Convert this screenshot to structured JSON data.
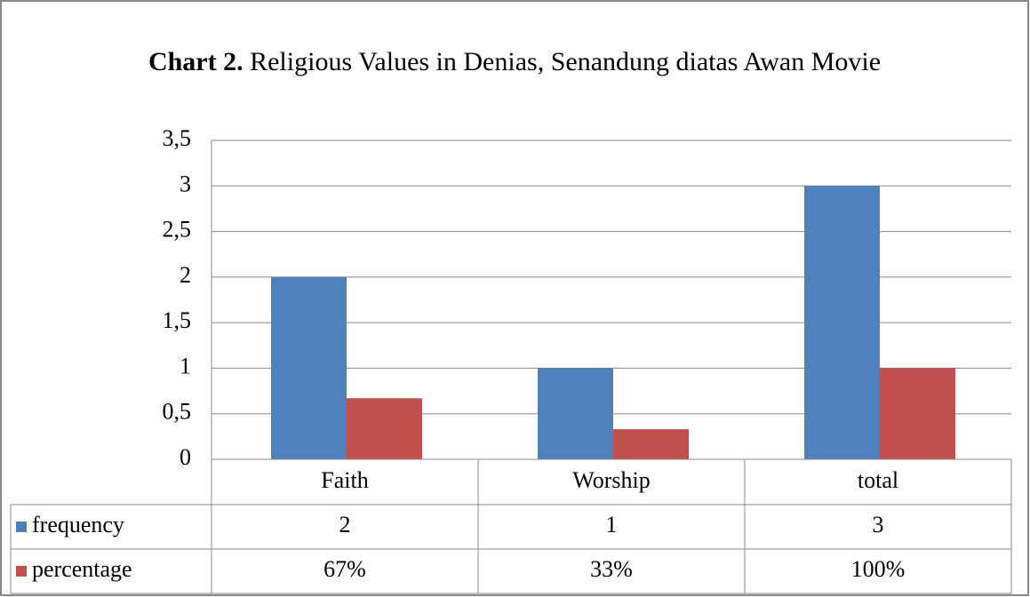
{
  "chart_data": {
    "type": "bar",
    "title_label": "Chart 2.",
    "title": "Religious Values in Denias, Senandung diatas Awan Movie",
    "categories": [
      "Faith",
      "Worship",
      "total"
    ],
    "series": [
      {
        "name": "frequency",
        "color": "#4f81bd",
        "values": [
          2,
          1,
          3
        ]
      },
      {
        "name": "percentage",
        "color": "#c0504d",
        "values": [
          0.67,
          0.33,
          1
        ],
        "value_labels": [
          "67%",
          "33%",
          "100%"
        ]
      }
    ],
    "ylim": [
      0,
      3.5
    ],
    "yticks": [
      0,
      {
        "value": 0.5,
        "label": "0,5"
      },
      1,
      {
        "value": 1.5,
        "label": "1,5"
      },
      2,
      {
        "value": 2.5,
        "label": "2,5"
      },
      3,
      {
        "value": 3.5,
        "label": "3,5"
      }
    ],
    "grid": true
  }
}
